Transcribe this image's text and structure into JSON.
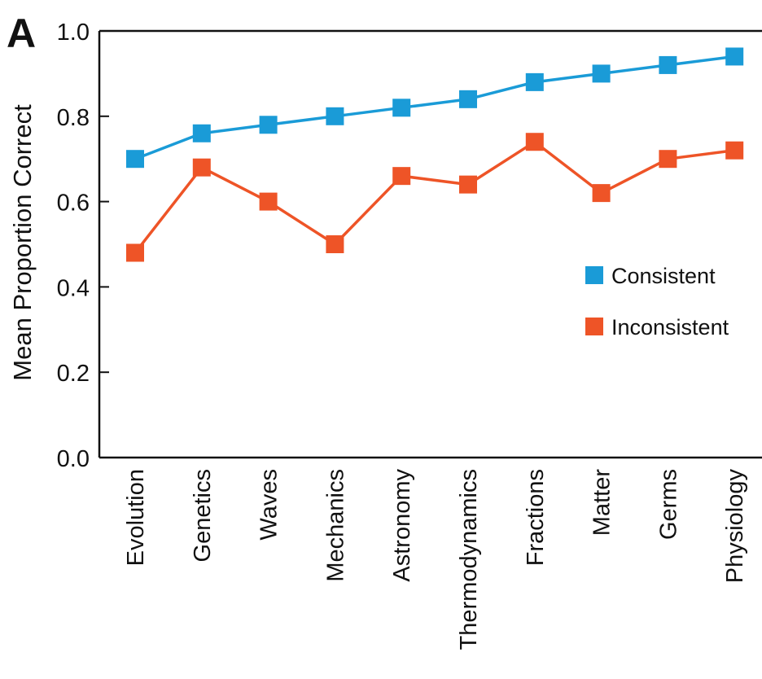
{
  "chart_data": {
    "type": "line",
    "panel_label": "A",
    "ylabel": "Mean Proportion Correct",
    "xlabel": "",
    "ylim": [
      0.0,
      1.0
    ],
    "y_ticks": [
      "0.0",
      "0.2",
      "0.4",
      "0.6",
      "0.8",
      "1.0"
    ],
    "grid": false,
    "legend_position": "right",
    "categories": [
      "Evolution",
      "Genetics",
      "Waves",
      "Mechanics",
      "Astronomy",
      "Thermodynamics",
      "Fractions",
      "Matter",
      "Germs",
      "Physiology"
    ],
    "series": [
      {
        "name": "Consistent",
        "color": "#1a9bd7",
        "values": [
          0.7,
          0.76,
          0.78,
          0.8,
          0.82,
          0.84,
          0.88,
          0.9,
          0.92,
          0.94
        ]
      },
      {
        "name": "Inconsistent",
        "color": "#ee5427",
        "values": [
          0.48,
          0.68,
          0.6,
          0.5,
          0.66,
          0.64,
          0.74,
          0.62,
          0.7,
          0.72
        ]
      }
    ]
  }
}
